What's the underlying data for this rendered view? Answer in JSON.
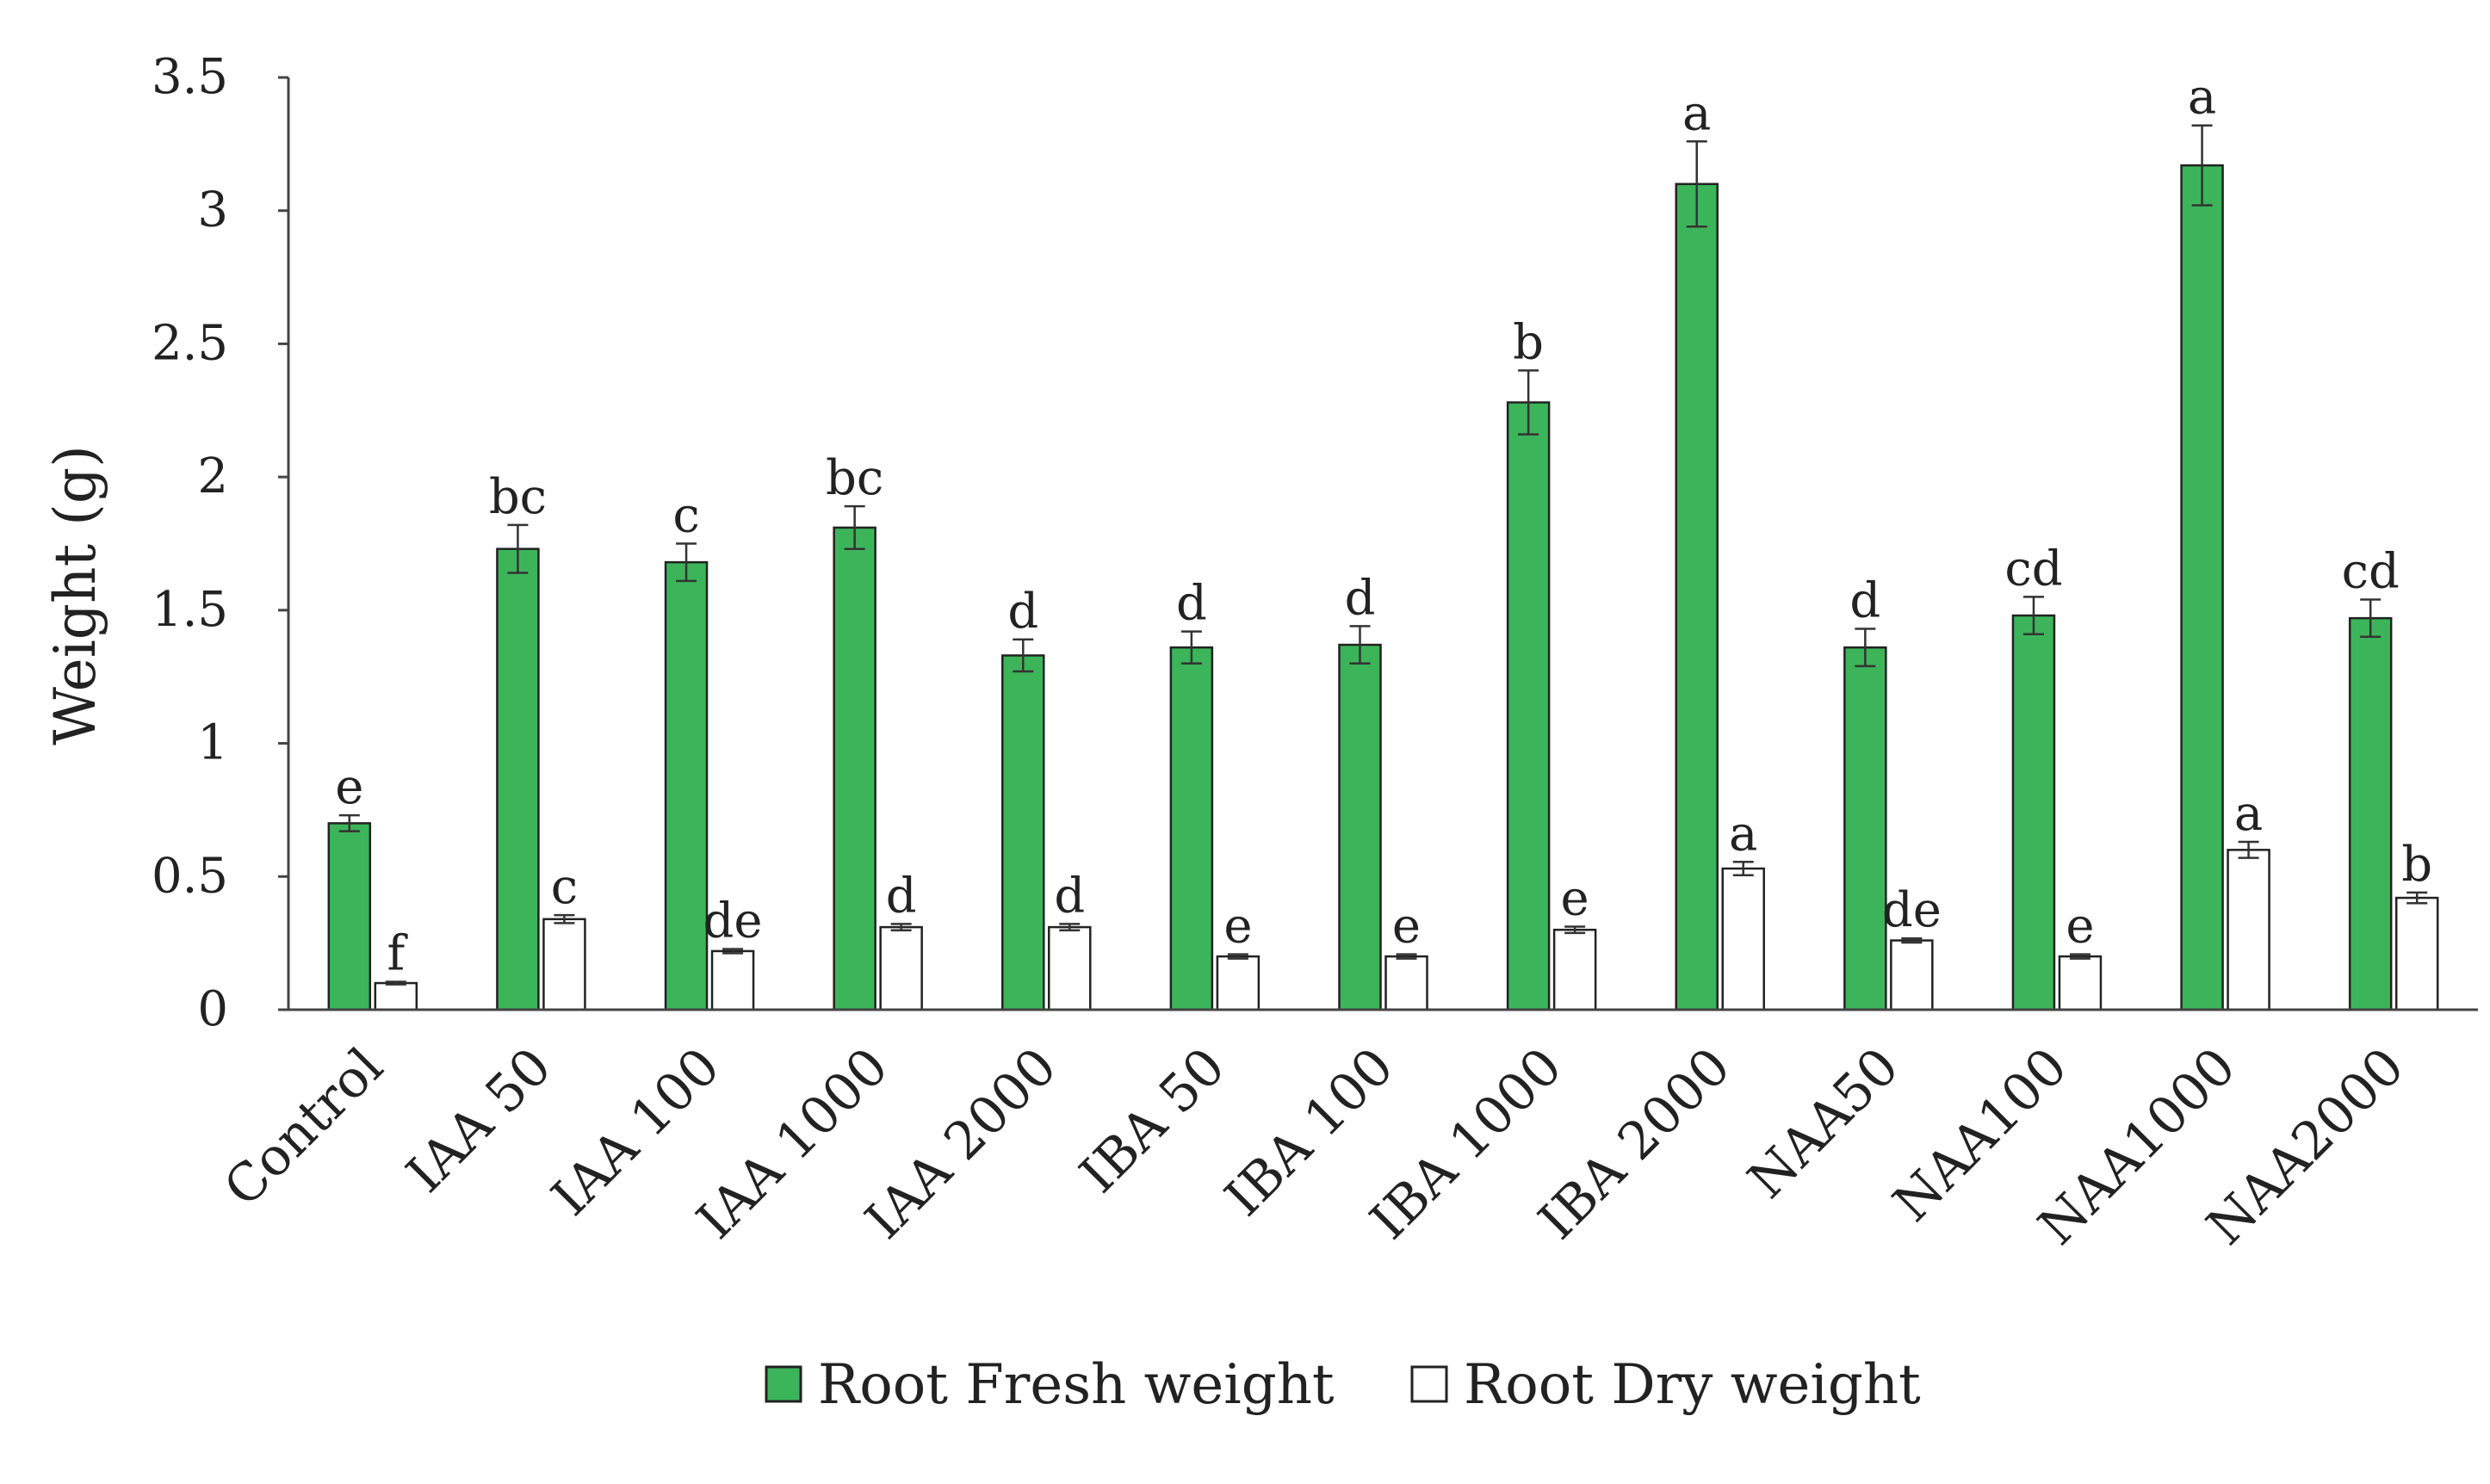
{
  "chart_data": {
    "type": "bar",
    "title": "",
    "xlabel": "",
    "ylabel": "Weight (g)",
    "ylim": [
      0,
      3.5
    ],
    "yticks": [
      "0",
      "0.5",
      "1",
      "1.5",
      "2",
      "2.5",
      "3",
      "3.5"
    ],
    "grid": false,
    "legend_position": "bottom-center",
    "categories": [
      "Control",
      "IAA 50",
      "IAA 100",
      "IAA 1000",
      "IAA 2000",
      "IBA 50",
      "IBA 100",
      "IBA 1000",
      "IBA 2000",
      "NAA50",
      "NAA100",
      "NAA1000",
      "NAA2000"
    ],
    "series": [
      {
        "name": "Root Fresh weight",
        "color": "#3cb55a",
        "values": [
          0.7,
          1.73,
          1.68,
          1.81,
          1.33,
          1.36,
          1.37,
          2.28,
          3.1,
          1.36,
          1.48,
          3.17,
          1.47
        ],
        "errors": [
          0.03,
          0.09,
          0.07,
          0.08,
          0.06,
          0.06,
          0.07,
          0.12,
          0.16,
          0.07,
          0.07,
          0.15,
          0.07
        ],
        "significance": [
          "e",
          "bc",
          "c",
          "bc",
          "d",
          "d",
          "d",
          "b",
          "a",
          "d",
          "cd",
          "a",
          "cd"
        ]
      },
      {
        "name": "Root Dry weight",
        "color": "#ffffff",
        "values": [
          0.1,
          0.34,
          0.22,
          0.31,
          0.31,
          0.2,
          0.2,
          0.3,
          0.53,
          0.26,
          0.2,
          0.6,
          0.42
        ],
        "errors": [
          0.005,
          0.015,
          0.008,
          0.012,
          0.012,
          0.008,
          0.008,
          0.012,
          0.025,
          0.008,
          0.008,
          0.03,
          0.02
        ],
        "significance": [
          "f",
          "c",
          "de",
          "d",
          "d",
          "e",
          "e",
          "e",
          "a",
          "de",
          "e",
          "a",
          "b"
        ]
      }
    ]
  }
}
